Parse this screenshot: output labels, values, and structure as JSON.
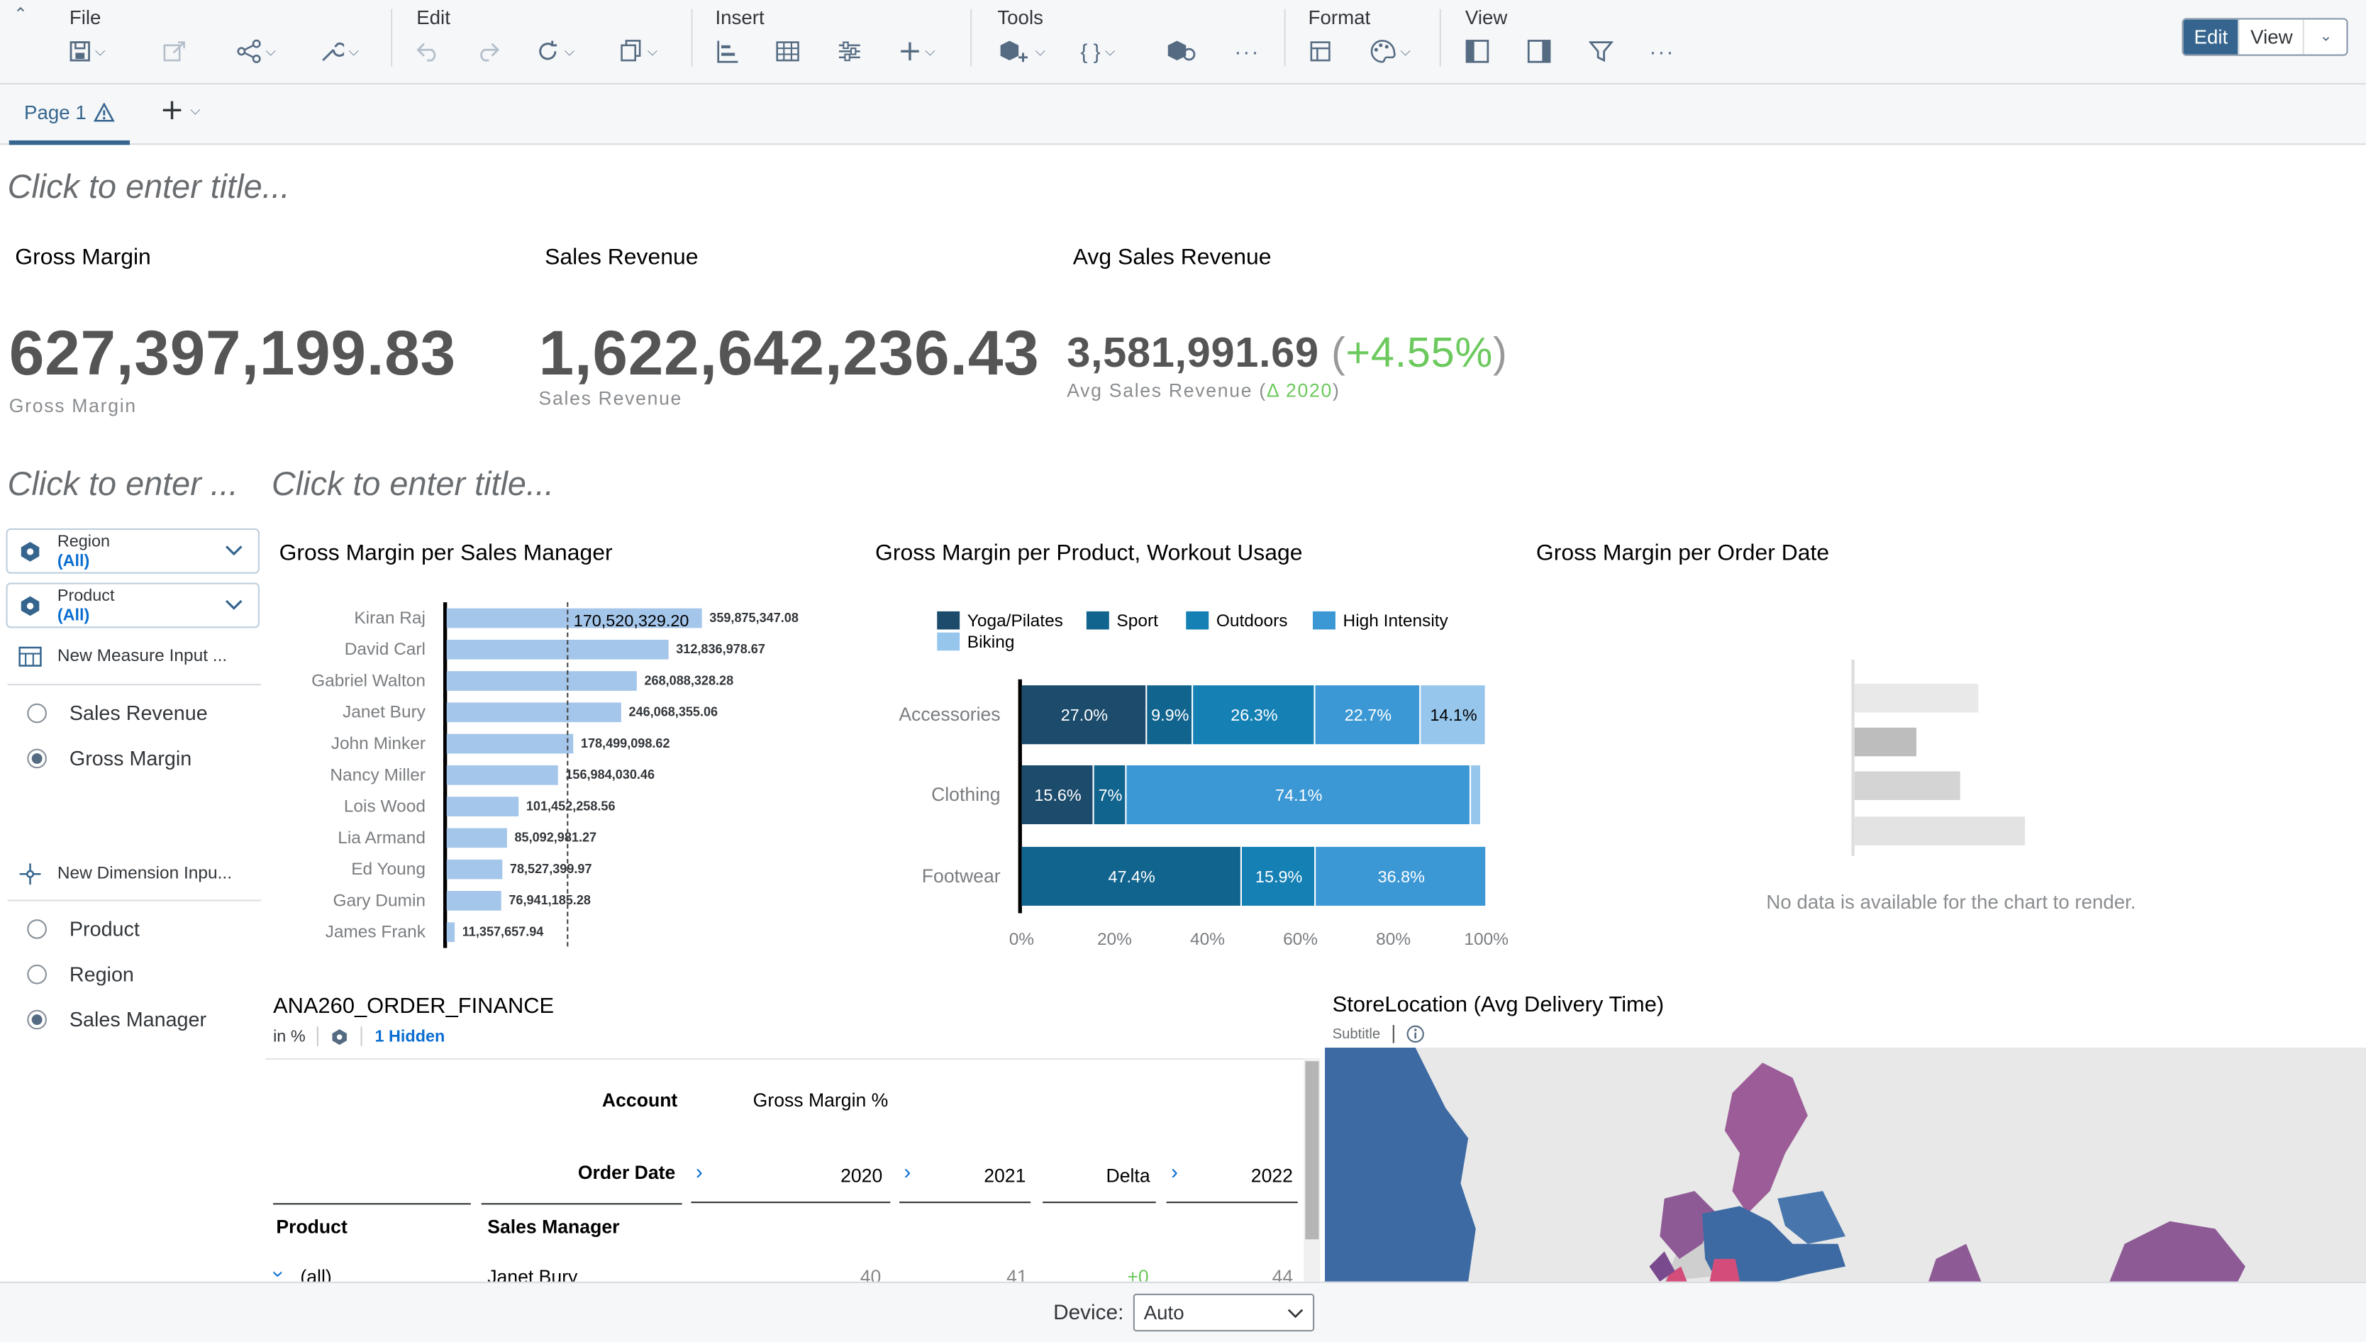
{
  "toolbar": {
    "groups": [
      "File",
      "Edit",
      "Insert",
      "Tools",
      "Format",
      "View"
    ],
    "mode": {
      "edit": "Edit",
      "view": "View"
    }
  },
  "pages": {
    "tab1": "Page 1"
  },
  "titles": {
    "main_placeholder": "Click to enter title...",
    "left_placeholder": "Click to enter ...",
    "section_placeholder": "Click to enter title..."
  },
  "kpis": [
    {
      "title": "Gross Margin",
      "value": "627,397,199.83",
      "sub": "Gross Margin"
    },
    {
      "title": "Sales Revenue",
      "value": "1,622,642,236.43",
      "sub": "Sales Revenue"
    },
    {
      "title": "Avg Sales Revenue",
      "value": "3,581,991.69",
      "delta": "+4.55%",
      "sub_prefix": "Avg Sales Revenue (",
      "sub_delta": "Δ 2020",
      "sub_suffix": ")"
    }
  ],
  "filters": [
    {
      "name": "Region",
      "value": "(All)"
    },
    {
      "name": "Product",
      "value": "(All)"
    }
  ],
  "measure_input": {
    "title": "New Measure Input ...",
    "options": [
      {
        "label": "Sales Revenue",
        "selected": false
      },
      {
        "label": "Gross Margin",
        "selected": true
      }
    ]
  },
  "dimension_input": {
    "title": "New Dimension Inpu...",
    "options": [
      {
        "label": "Product",
        "selected": false
      },
      {
        "label": "Region",
        "selected": false
      },
      {
        "label": "Sales Manager",
        "selected": true
      }
    ]
  },
  "chart_data": [
    {
      "type": "bar",
      "orientation": "horizontal",
      "title": "Gross Margin per Sales Manager",
      "categories": [
        "Kiran Raj",
        "David Carl",
        "Gabriel Walton",
        "Janet Bury",
        "John Minker",
        "Nancy Miller",
        "Lois Wood",
        "Lia Armand",
        "Ed Young",
        "Gary Dumin",
        "James Frank"
      ],
      "values": [
        359875347.08,
        312836978.67,
        268088328.28,
        246068355.06,
        178499098.62,
        156984030.46,
        101452258.56,
        85092981.27,
        78527399.97,
        76941185.28,
        11357657.94
      ],
      "labels": [
        "359,875,347.08",
        "312,836,978.67",
        "268,088,328.28",
        "246,068,355.06",
        "178,499,098.62",
        "156,984,030.46",
        "101,452,258.56",
        "85,092,981.27",
        "78,527,399.97",
        "76,941,185.28",
        "11,357,657.94"
      ],
      "reference_line": {
        "value": 170520329.2,
        "label": "170,520,329.20"
      },
      "xlim": [
        0,
        400000000
      ]
    },
    {
      "type": "bar",
      "orientation": "horizontal",
      "stacked": "100%",
      "title": "Gross Margin per Product, Workout Usage",
      "categories": [
        "Accessories",
        "Clothing",
        "Footwear"
      ],
      "series": [
        {
          "name": "Yoga/Pilates",
          "color": "#1c4b6b",
          "values": [
            27.0,
            15.6,
            0
          ]
        },
        {
          "name": "Sport",
          "color": "#11648e",
          "values": [
            9.9,
            7.0,
            47.4
          ]
        },
        {
          "name": "Outdoors",
          "color": "#1480b4",
          "values": [
            26.3,
            0,
            15.9
          ]
        },
        {
          "name": "High Intensity",
          "color": "#3b98d5",
          "values": [
            22.7,
            74.1,
            36.8
          ]
        },
        {
          "name": "Biking",
          "color": "#97c6ec",
          "values": [
            14.1,
            2.3,
            0
          ]
        }
      ],
      "segment_labels": [
        [
          "27.0%",
          "9.9%",
          "26.3%",
          "22.7%",
          "14.1%"
        ],
        [
          "15.6%",
          "7%",
          "",
          "74.1%",
          ""
        ],
        [
          "",
          "47.4%",
          "15.9%",
          "36.8%",
          ""
        ]
      ],
      "x_ticks": [
        "0%",
        "20%",
        "40%",
        "60%",
        "80%",
        "100%"
      ],
      "xlim": [
        0,
        100
      ]
    },
    {
      "type": "bar",
      "title": "Gross Margin per Order Date",
      "no_data_message": "No data is available for the chart to render."
    }
  ],
  "table": {
    "title": "ANA260_ORDER_FINANCE",
    "unit": "in %",
    "hidden": "1 Hidden",
    "account_label": "Account",
    "account_value": "Gross Margin %",
    "order_date_label": "Order Date",
    "years": [
      "2020",
      "2021",
      "Delta",
      "2022"
    ],
    "product_label": "Product",
    "manager_label": "Sales Manager",
    "row": {
      "product": "(all)",
      "manager": "Janet Bury",
      "values": [
        "40",
        "41",
        "+0",
        "44"
      ]
    }
  },
  "map": {
    "title": "StoreLocation (Avg Delivery Time)",
    "subtitle": "Subtitle"
  },
  "footer": {
    "device_label": "Device:",
    "device_value": "Auto"
  }
}
